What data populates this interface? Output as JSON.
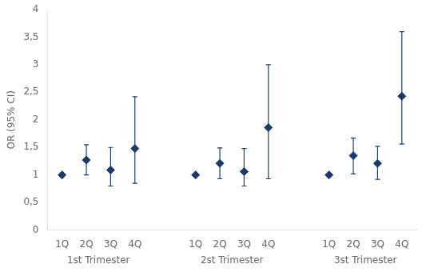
{
  "chart_data": {
    "type": "scatter",
    "ylabel": "OR (95% CI)",
    "color": "#1a3a6b",
    "marker": "diamond",
    "grid": false,
    "ylim": [
      0,
      4
    ],
    "yticks": [
      0,
      {
        "value": 0.5,
        "label": "0,5"
      },
      1,
      {
        "value": 1.5,
        "label": "1,5"
      },
      2,
      {
        "value": 2.5,
        "label": "2,5"
      },
      3,
      {
        "value": 3.5,
        "label": "3,5"
      },
      4
    ],
    "groups": [
      {
        "name": "1st Trimester",
        "categories": [
          "1Q",
          "2Q",
          "3Q",
          "4Q"
        ],
        "values": [
          1.0,
          1.27,
          1.09,
          1.48
        ],
        "ci_low": [
          1.0,
          1.0,
          0.8,
          0.85
        ],
        "ci_high": [
          1.0,
          1.55,
          1.5,
          2.42
        ]
      },
      {
        "name": "2st Trimester",
        "categories": [
          "1Q",
          "2Q",
          "3Q",
          "4Q"
        ],
        "values": [
          1.0,
          1.21,
          1.06,
          1.86
        ],
        "ci_low": [
          1.0,
          0.93,
          0.8,
          0.93
        ],
        "ci_high": [
          1.0,
          1.49,
          1.48,
          3.0
        ]
      },
      {
        "name": "3st Trimester",
        "categories": [
          "1Q",
          "2Q",
          "3Q",
          "4Q"
        ],
        "values": [
          1.0,
          1.35,
          1.21,
          2.43
        ],
        "ci_low": [
          1.0,
          1.02,
          0.92,
          1.56
        ],
        "ci_high": [
          1.0,
          1.67,
          1.52,
          3.6
        ]
      }
    ]
  }
}
